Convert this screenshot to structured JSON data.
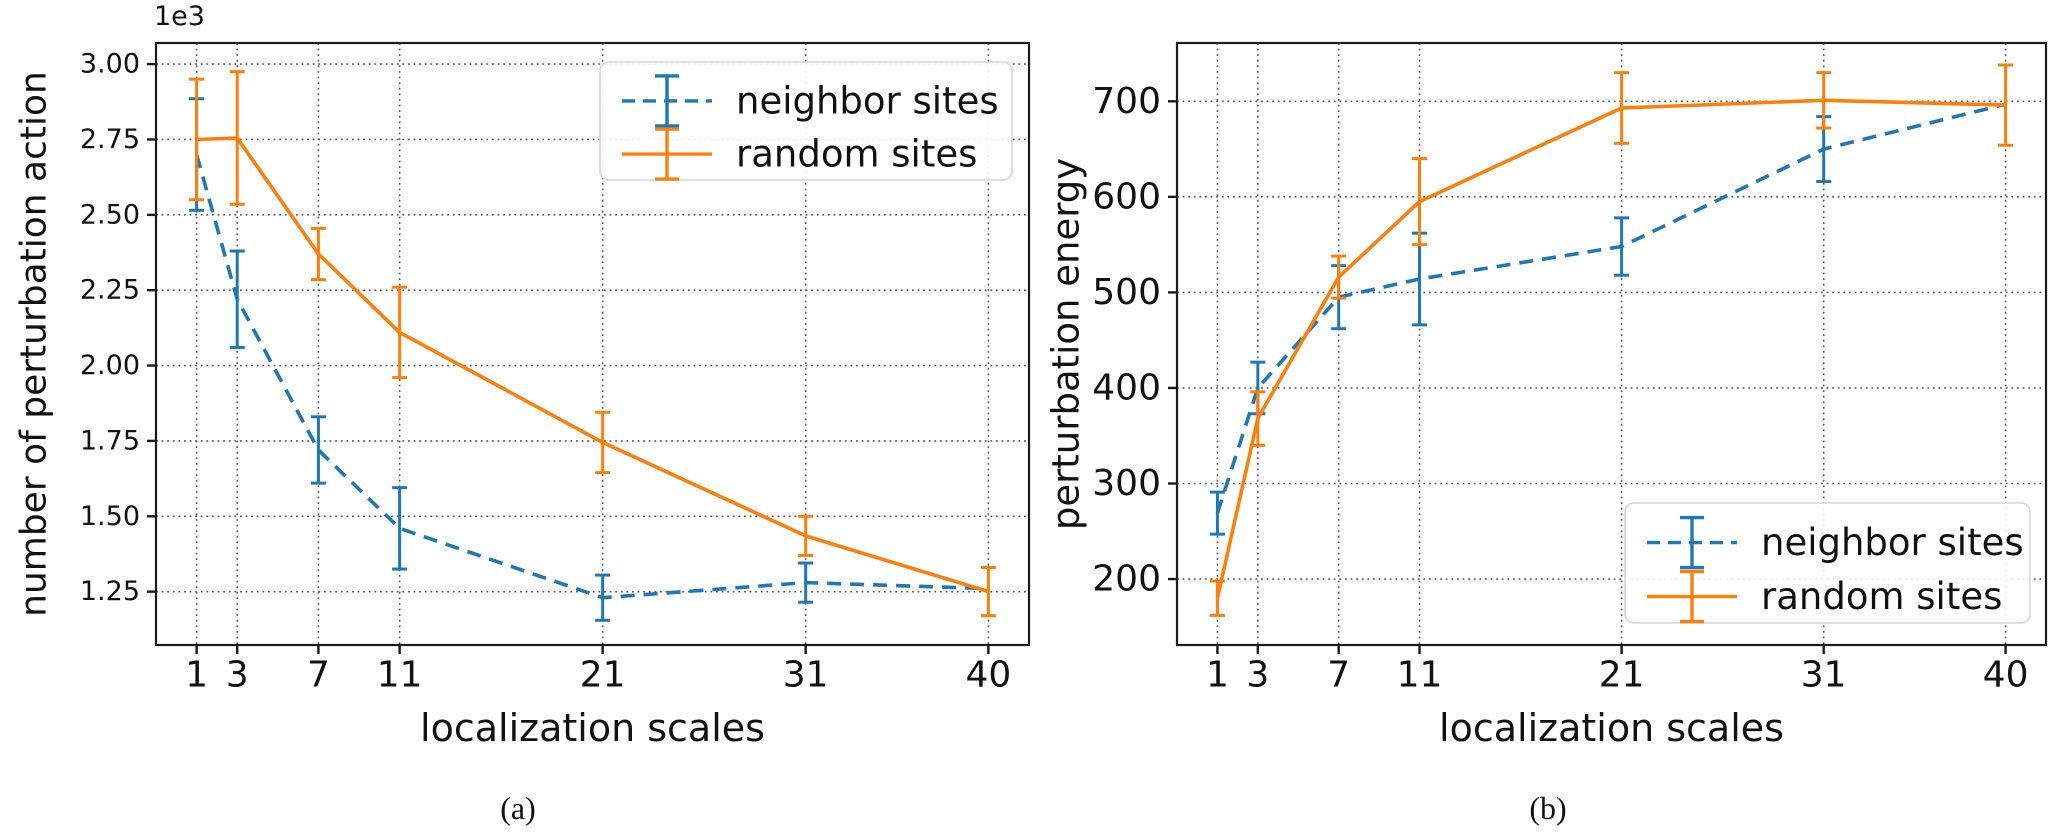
{
  "figure": {
    "background": "#ffffff",
    "captions": {
      "a": "(a)",
      "b": "(b)"
    }
  },
  "colors": {
    "neighbor_sites": "#1f77b4",
    "random_sites": "#ff7f0e",
    "grid": "#595959",
    "frame": "#1a1a1a",
    "text": "#111111",
    "legend_border": "#d5d5d5",
    "legend_background": "#ffffff"
  },
  "chart_data": [
    {
      "id": "a",
      "type": "line",
      "caption": "(a)",
      "title": "",
      "xlabel": "localization scales",
      "ylabel": "number of perturbation action",
      "y_offset_text": "1e3",
      "y_scale": 1000,
      "x": [
        1,
        3,
        7,
        11,
        21,
        31,
        40
      ],
      "xtick_labels": [
        "1",
        "3",
        "7",
        "11",
        "21",
        "31",
        "40"
      ],
      "xlim": [
        -1,
        42
      ],
      "ylim_axis": [
        1.073,
        3.07
      ],
      "ytick_values": [
        3000,
        2750,
        2500,
        2250,
        2000,
        1750,
        1500,
        1250
      ],
      "ytick_labels": [
        "3.00",
        "2.75",
        "2.50",
        "2.25",
        "2.00",
        "1.75",
        "1.50",
        "1.25"
      ],
      "grid": true,
      "grid_style": "dotted",
      "legend_position": "upper right",
      "legend_entries": [
        "neighbor sites",
        "random sites"
      ],
      "series": [
        {
          "name": "neighbor sites",
          "line_style": "dashed",
          "color": "neighbor_sites",
          "values": [
            2700,
            2220,
            1720,
            1460,
            1230,
            1280,
            1260
          ],
          "yerr": [
            185,
            160,
            110,
            135,
            75,
            65,
            0
          ]
        },
        {
          "name": "random sites",
          "line_style": "solid",
          "color": "random_sites",
          "values": [
            2750,
            2755,
            2370,
            2110,
            1745,
            1435,
            1250
          ],
          "yerr": [
            200,
            220,
            85,
            150,
            100,
            65,
            80
          ]
        }
      ]
    },
    {
      "id": "b",
      "type": "line",
      "caption": "(b)",
      "title": "",
      "xlabel": "localization scales",
      "ylabel": "perturbation energy",
      "y_offset_text": "",
      "y_scale": 1,
      "x": [
        1,
        3,
        7,
        11,
        21,
        31,
        40
      ],
      "xtick_labels": [
        "1",
        "3",
        "7",
        "11",
        "21",
        "31",
        "40"
      ],
      "xlim": [
        -1,
        42
      ],
      "ylim_axis": [
        131,
        761
      ],
      "ytick_values": [
        700,
        600,
        500,
        400,
        300,
        200
      ],
      "ytick_labels": [
        "700",
        "600",
        "500",
        "400",
        "300",
        "200"
      ],
      "grid": true,
      "grid_style": "dotted",
      "legend_position": "lower right",
      "legend_entries": [
        "neighbor sites",
        "random sites"
      ],
      "series": [
        {
          "name": "neighbor sites",
          "line_style": "dashed",
          "color": "neighbor_sites",
          "values": [
            269,
            400,
            495,
            514,
            548,
            650,
            697
          ],
          "yerr": [
            22,
            27,
            33,
            48,
            30,
            34,
            0
          ]
        },
        {
          "name": "random sites",
          "line_style": "solid",
          "color": "random_sites",
          "values": [
            180,
            368,
            516,
            595,
            693,
            701,
            696
          ],
          "yerr": [
            18,
            28,
            22,
            45,
            37,
            29,
            42
          ]
        }
      ]
    }
  ]
}
